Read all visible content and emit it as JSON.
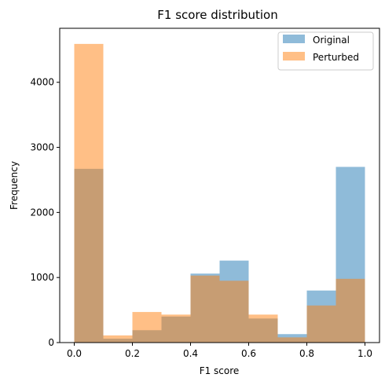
{
  "chart_data": {
    "type": "bar",
    "title": "F1 score distribution",
    "xlabel": "F1 score",
    "ylabel": "Frequency",
    "xlim": [
      -0.05,
      1.05
    ],
    "ylim": [
      0,
      4830
    ],
    "xticks": [
      0.0,
      0.2,
      0.4,
      0.6,
      0.8,
      1.0
    ],
    "xtick_labels": [
      "0.0",
      "0.2",
      "0.4",
      "0.6",
      "0.8",
      "1.0"
    ],
    "yticks": [
      0,
      1000,
      2000,
      3000,
      4000
    ],
    "ytick_labels": [
      "0",
      "1000",
      "2000",
      "3000",
      "4000"
    ],
    "bin_edges": [
      0.0,
      0.1,
      0.2,
      0.3,
      0.4,
      0.5,
      0.6,
      0.7,
      0.8,
      0.9,
      1.0
    ],
    "legend_position": "top-right",
    "grid": false,
    "series": [
      {
        "name": "Original",
        "color": "#1f77b4",
        "alpha": 0.5,
        "values": [
          2670,
          60,
          190,
          400,
          1060,
          1260,
          370,
          130,
          800,
          2700
        ]
      },
      {
        "name": "Perturbed",
        "color": "#ff7f0e",
        "alpha": 0.5,
        "values": [
          4590,
          110,
          470,
          430,
          1030,
          950,
          430,
          80,
          570,
          980
        ]
      }
    ]
  }
}
